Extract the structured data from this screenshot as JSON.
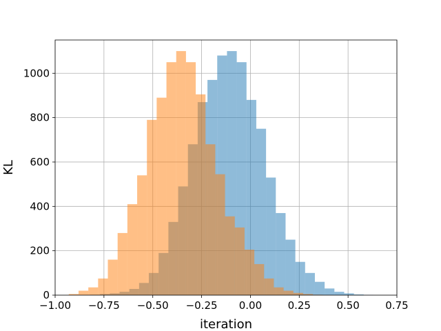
{
  "chart_data": {
    "type": "bar",
    "title": "",
    "xlabel": "iteration",
    "ylabel": "KL",
    "xlim": [
      -1.0,
      0.75
    ],
    "ylim": [
      0,
      1150
    ],
    "grid": true,
    "legend": "none",
    "x_ticks": [
      -1.0,
      -0.75,
      -0.5,
      -0.25,
      0.0,
      0.25,
      0.5,
      0.75
    ],
    "x_tick_labels": [
      "−1.00",
      "−0.75",
      "−0.50",
      "−0.25",
      "0.00",
      "0.25",
      "0.50",
      "0.75"
    ],
    "y_ticks": [
      0,
      200,
      400,
      600,
      800,
      1000
    ],
    "y_tick_labels": [
      "0",
      "200",
      "400",
      "600",
      "800",
      "1000"
    ],
    "series": [
      {
        "color": "#1f77b4",
        "opacity": 0.5,
        "bin_edges": [
          -0.82,
          -0.77,
          -0.72,
          -0.67,
          -0.62,
          -0.57,
          -0.52,
          -0.47,
          -0.42,
          -0.37,
          -0.32,
          -0.27,
          -0.22,
          -0.17,
          -0.12,
          -0.07,
          -0.02,
          0.03,
          0.08,
          0.13,
          0.18,
          0.23,
          0.28,
          0.33,
          0.38,
          0.43,
          0.48,
          0.53,
          0.58,
          0.63,
          0.68
        ],
        "values": [
          2,
          5,
          8,
          15,
          28,
          55,
          100,
          190,
          330,
          490,
          680,
          870,
          970,
          1080,
          1100,
          1050,
          880,
          750,
          530,
          370,
          250,
          150,
          100,
          60,
          30,
          15,
          8,
          3,
          1,
          0
        ]
      },
      {
        "color": "#ff7f0e",
        "opacity": 0.5,
        "bin_edges": [
          -0.93,
          -0.88,
          -0.83,
          -0.78,
          -0.73,
          -0.68,
          -0.63,
          -0.58,
          -0.53,
          -0.48,
          -0.43,
          -0.38,
          -0.33,
          -0.28,
          -0.23,
          -0.18,
          -0.13,
          -0.08,
          -0.03,
          0.02,
          0.07,
          0.12,
          0.17,
          0.22,
          0.27,
          0.32,
          0.37,
          0.42,
          0.47,
          0.52,
          0.57
        ],
        "values": [
          5,
          20,
          35,
          75,
          160,
          280,
          410,
          540,
          790,
          890,
          1050,
          1100,
          1050,
          905,
          680,
          545,
          355,
          305,
          205,
          140,
          75,
          35,
          20,
          10,
          5,
          2,
          1,
          0,
          0,
          0
        ]
      }
    ]
  }
}
